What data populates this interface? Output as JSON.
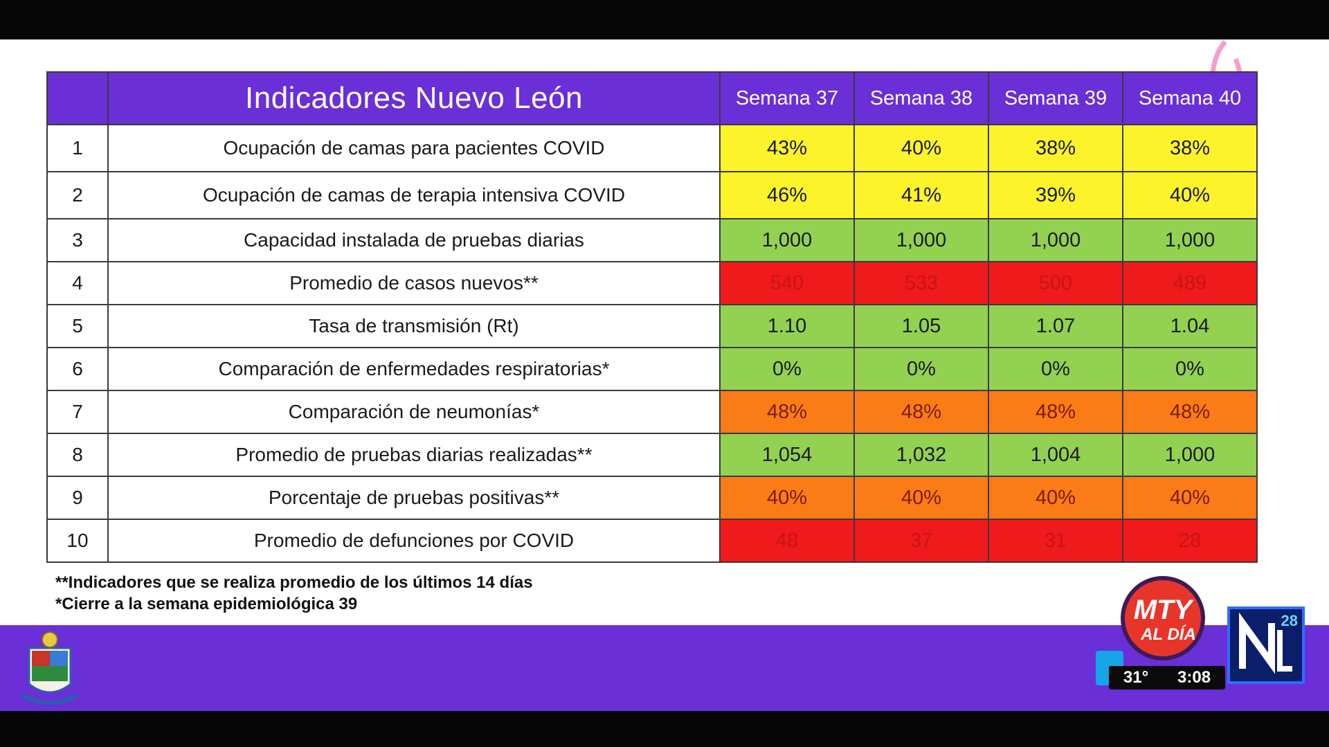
{
  "table": {
    "title": "Indicadores Nuevo León",
    "weeks": [
      "Semana 37",
      "Semana 38",
      "Semana 39",
      "Semana 40"
    ],
    "rows": [
      {
        "num": "1",
        "label": "Ocupación de camas para pacientes COVID",
        "values": [
          "43%",
          "40%",
          "38%",
          "38%"
        ],
        "level": "yellow"
      },
      {
        "num": "2",
        "label": "Ocupación de camas de terapia intensiva COVID",
        "values": [
          "46%",
          "41%",
          "39%",
          "40%"
        ],
        "level": "yellow"
      },
      {
        "num": "3",
        "label": "Capacidad instalada de pruebas diarias",
        "values": [
          "1,000",
          "1,000",
          "1,000",
          "1,000"
        ],
        "level": "green"
      },
      {
        "num": "4",
        "label": "Promedio de casos nuevos**",
        "values": [
          "540",
          "533",
          "500",
          "489"
        ],
        "level": "red"
      },
      {
        "num": "5",
        "label": "Tasa de transmisión (Rt)",
        "values": [
          "1.10",
          "1.05",
          "1.07",
          "1.04"
        ],
        "level": "green"
      },
      {
        "num": "6",
        "label": "Comparación de enfermedades respiratorias*",
        "values": [
          "0%",
          "0%",
          "0%",
          "0%"
        ],
        "level": "green"
      },
      {
        "num": "7",
        "label": "Comparación de neumonías*",
        "values": [
          "48%",
          "48%",
          "48%",
          "48%"
        ],
        "level": "orange"
      },
      {
        "num": "8",
        "label": "Promedio de pruebas diarias realizadas**",
        "values": [
          "1,054",
          "1,032",
          "1,004",
          "1,000"
        ],
        "level": "green"
      },
      {
        "num": "9",
        "label": "Porcentaje de pruebas positivas**",
        "values": [
          "40%",
          "40%",
          "40%",
          "40%"
        ],
        "level": "orange"
      },
      {
        "num": "10",
        "label": "Promedio de defunciones por COVID",
        "values": [
          "48",
          "37",
          "31",
          "28"
        ],
        "level": "red"
      }
    ]
  },
  "notes": {
    "line1": "**Indicadores que se realiza promedio de los últimos 14 días",
    "line2": "*Cierre a la semana epidemiológica 39"
  },
  "overlay": {
    "show_logo_line1": "MTY",
    "show_logo_line2": "AL DÍA",
    "temperature": "31°",
    "time": "3:08",
    "channel_number": "28"
  },
  "colors": {
    "header_purple": "#6a2fd6",
    "yellow": "#fdf32a",
    "green": "#93d151",
    "red": "#f0191c",
    "orange": "#fb7b17"
  },
  "icons": [
    "state-emblem-icon",
    "pink-ribbon-icon",
    "mty-al-dia-logo-icon",
    "channel-n-logo-icon"
  ]
}
